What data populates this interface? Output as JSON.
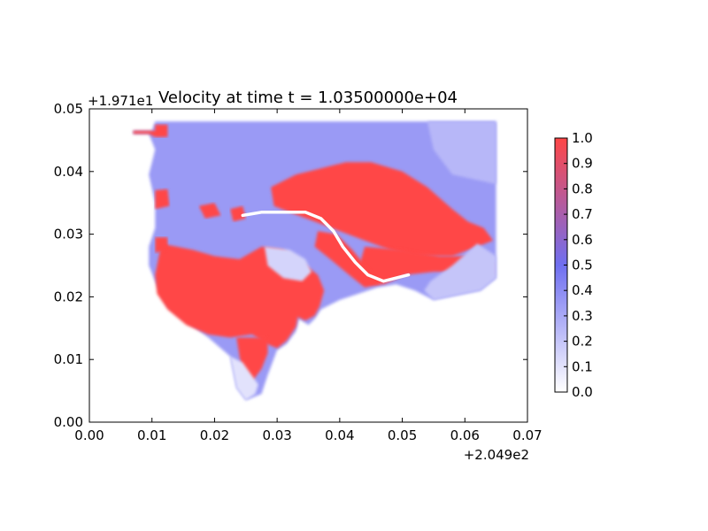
{
  "chart_data": {
    "type": "heatmap",
    "title": "Velocity at time t = 1.03500000e+04",
    "xlim": [
      0.0,
      0.07
    ],
    "ylim": [
      0.0,
      0.05
    ],
    "x_ticks": [
      "0.00",
      "0.01",
      "0.02",
      "0.03",
      "0.04",
      "0.05",
      "0.06",
      "0.07"
    ],
    "y_ticks": [
      "0.00",
      "0.01",
      "0.02",
      "0.03",
      "0.04",
      "0.05"
    ],
    "x_offset": "+2.049e2",
    "y_offset": "+1.971e1",
    "colorbar": {
      "range": [
        0.0,
        1.0
      ],
      "ticks": [
        "0.0",
        "0.1",
        "0.2",
        "0.3",
        "0.4",
        "0.5",
        "0.6",
        "0.7",
        "0.8",
        "0.9",
        "1.0"
      ],
      "colors": [
        "#ffffff",
        "#6f6ff0",
        "#ff4646"
      ]
    },
    "grid": false,
    "regions": [
      {
        "name": "land-mass",
        "level": 0.35,
        "points": [
          [
            0.007,
            0.0465
          ],
          [
            0.01,
            0.0465
          ],
          [
            0.0105,
            0.048
          ],
          [
            0.065,
            0.048
          ],
          [
            0.065,
            0.023
          ],
          [
            0.0625,
            0.021
          ],
          [
            0.055,
            0.0195
          ],
          [
            0.052,
            0.021
          ],
          [
            0.049,
            0.022
          ],
          [
            0.046,
            0.0215
          ],
          [
            0.043,
            0.0205
          ],
          [
            0.04,
            0.0195
          ],
          [
            0.037,
            0.018
          ],
          [
            0.036,
            0.0165
          ],
          [
            0.035,
            0.0155
          ],
          [
            0.0335,
            0.0165
          ],
          [
            0.033,
            0.0145
          ],
          [
            0.0315,
            0.0125
          ],
          [
            0.03,
            0.0115
          ],
          [
            0.0285,
            0.0075
          ],
          [
            0.0275,
            0.0045
          ],
          [
            0.025,
            0.0035
          ],
          [
            0.0235,
            0.0055
          ],
          [
            0.0225,
            0.0105
          ],
          [
            0.019,
            0.0135
          ],
          [
            0.015,
            0.0165
          ],
          [
            0.0125,
            0.0185
          ],
          [
            0.0115,
            0.0205
          ],
          [
            0.0105,
            0.0225
          ],
          [
            0.0095,
            0.025
          ],
          [
            0.0095,
            0.028
          ],
          [
            0.0105,
            0.031
          ],
          [
            0.0105,
            0.035
          ],
          [
            0.0095,
            0.0395
          ],
          [
            0.0105,
            0.0435
          ],
          [
            0.0095,
            0.046
          ],
          [
            0.007,
            0.046
          ]
        ]
      },
      {
        "name": "north-high-band",
        "level": 1.0,
        "points": [
          [
            0.029,
            0.0375
          ],
          [
            0.033,
            0.0395
          ],
          [
            0.037,
            0.0405
          ],
          [
            0.041,
            0.0415
          ],
          [
            0.045,
            0.0415
          ],
          [
            0.05,
            0.04
          ],
          [
            0.054,
            0.0375
          ],
          [
            0.058,
            0.034
          ],
          [
            0.0605,
            0.032
          ],
          [
            0.063,
            0.031
          ],
          [
            0.0645,
            0.029
          ],
          [
            0.062,
            0.028
          ],
          [
            0.058,
            0.0265
          ],
          [
            0.052,
            0.0265
          ],
          [
            0.048,
            0.0275
          ],
          [
            0.044,
            0.029
          ],
          [
            0.04,
            0.0305
          ],
          [
            0.036,
            0.032
          ],
          [
            0.032,
            0.0335
          ],
          [
            0.0295,
            0.0345
          ]
        ]
      },
      {
        "name": "east-high-band",
        "level": 1.0,
        "points": [
          [
            0.044,
            0.028
          ],
          [
            0.05,
            0.0275
          ],
          [
            0.056,
            0.0265
          ],
          [
            0.0605,
            0.0265
          ],
          [
            0.0645,
            0.0255
          ],
          [
            0.0645,
            0.0235
          ],
          [
            0.06,
            0.024
          ],
          [
            0.055,
            0.024
          ],
          [
            0.0505,
            0.0235
          ],
          [
            0.047,
            0.022
          ],
          [
            0.0445,
            0.022
          ],
          [
            0.043,
            0.0245
          ]
        ]
      },
      {
        "name": "bay-high-region",
        "level": 1.0,
        "points": [
          [
            0.0115,
            0.0285
          ],
          [
            0.0165,
            0.0275
          ],
          [
            0.02,
            0.0265
          ],
          [
            0.024,
            0.026
          ],
          [
            0.0275,
            0.028
          ],
          [
            0.031,
            0.0275
          ],
          [
            0.034,
            0.0255
          ],
          [
            0.0365,
            0.0235
          ],
          [
            0.0375,
            0.021
          ],
          [
            0.0368,
            0.0185
          ],
          [
            0.036,
            0.017
          ],
          [
            0.0345,
            0.0162
          ],
          [
            0.0333,
            0.0168
          ],
          [
            0.033,
            0.0152
          ],
          [
            0.0315,
            0.013
          ],
          [
            0.03,
            0.0118
          ],
          [
            0.0283,
            0.0125
          ],
          [
            0.026,
            0.014
          ],
          [
            0.0225,
            0.0135
          ],
          [
            0.019,
            0.014
          ],
          [
            0.0155,
            0.0155
          ],
          [
            0.0125,
            0.018
          ],
          [
            0.0108,
            0.0205
          ],
          [
            0.0105,
            0.0235
          ]
        ]
      },
      {
        "name": "south-high-tongue",
        "level": 1.0,
        "points": [
          [
            0.0235,
            0.0135
          ],
          [
            0.0285,
            0.0135
          ],
          [
            0.0285,
            0.011
          ],
          [
            0.0275,
            0.0085
          ],
          [
            0.026,
            0.0065
          ],
          [
            0.0245,
            0.008
          ],
          [
            0.024,
            0.0105
          ]
        ]
      },
      {
        "name": "channel-high",
        "level": 1.0,
        "points": [
          [
            0.0365,
            0.0305
          ],
          [
            0.0395,
            0.03
          ],
          [
            0.042,
            0.0275
          ],
          [
            0.0445,
            0.0245
          ],
          [
            0.0465,
            0.022
          ],
          [
            0.044,
            0.0215
          ],
          [
            0.0415,
            0.0235
          ],
          [
            0.0385,
            0.026
          ],
          [
            0.036,
            0.028
          ]
        ]
      },
      {
        "name": "west-high-1",
        "level": 1.0,
        "points": [
          [
            0.0105,
            0.037
          ],
          [
            0.0125,
            0.0372
          ],
          [
            0.0128,
            0.0345
          ],
          [
            0.0105,
            0.034
          ]
        ]
      },
      {
        "name": "west-high-2",
        "level": 1.0,
        "points": [
          [
            0.0175,
            0.0345
          ],
          [
            0.02,
            0.035
          ],
          [
            0.021,
            0.033
          ],
          [
            0.0185,
            0.0325
          ]
        ]
      },
      {
        "name": "west-high-3",
        "level": 1.0,
        "points": [
          [
            0.0225,
            0.034
          ],
          [
            0.0245,
            0.0345
          ],
          [
            0.025,
            0.0325
          ],
          [
            0.023,
            0.032
          ]
        ]
      },
      {
        "name": "west-high-4",
        "level": 1.0,
        "points": [
          [
            0.0105,
            0.0295
          ],
          [
            0.0125,
            0.0295
          ],
          [
            0.0125,
            0.0275
          ],
          [
            0.0105,
            0.027
          ]
        ]
      },
      {
        "name": "north-west-high",
        "level": 1.0,
        "points": [
          [
            0.007,
            0.0465
          ],
          [
            0.0105,
            0.0465
          ],
          [
            0.0105,
            0.0475
          ],
          [
            0.0125,
            0.0475
          ],
          [
            0.0125,
            0.0455
          ],
          [
            0.0105,
            0.0455
          ],
          [
            0.0095,
            0.046
          ],
          [
            0.007,
            0.046
          ]
        ]
      },
      {
        "name": "east-low-patch",
        "level": 0.2,
        "points": [
          [
            0.055,
            0.0195
          ],
          [
            0.0625,
            0.021
          ],
          [
            0.065,
            0.023
          ],
          [
            0.065,
            0.0265
          ],
          [
            0.062,
            0.0285
          ],
          [
            0.058,
            0.025
          ],
          [
            0.0545,
            0.0225
          ],
          [
            0.0535,
            0.021
          ]
        ]
      },
      {
        "name": "north-east-light",
        "level": 0.25,
        "points": [
          [
            0.054,
            0.048
          ],
          [
            0.065,
            0.048
          ],
          [
            0.065,
            0.038
          ],
          [
            0.058,
            0.0395
          ],
          [
            0.055,
            0.0435
          ]
        ]
      },
      {
        "name": "interior-light",
        "level": 0.15,
        "points": [
          [
            0.028,
            0.028
          ],
          [
            0.032,
            0.0275
          ],
          [
            0.0345,
            0.026
          ],
          [
            0.0355,
            0.024
          ],
          [
            0.034,
            0.0225
          ],
          [
            0.031,
            0.023
          ],
          [
            0.0285,
            0.025
          ]
        ]
      },
      {
        "name": "south-low",
        "level": 0.1,
        "points": [
          [
            0.0225,
            0.0105
          ],
          [
            0.0245,
            0.0095
          ],
          [
            0.027,
            0.006
          ],
          [
            0.0265,
            0.0045
          ],
          [
            0.025,
            0.0035
          ],
          [
            0.0235,
            0.0055
          ]
        ]
      }
    ],
    "ridge": {
      "name": "white-ridge-line",
      "level": 0.0,
      "points": [
        [
          0.0245,
          0.033
        ],
        [
          0.0275,
          0.0335
        ],
        [
          0.031,
          0.0335
        ],
        [
          0.0345,
          0.0335
        ],
        [
          0.037,
          0.0325
        ],
        [
          0.039,
          0.0305
        ],
        [
          0.0405,
          0.028
        ],
        [
          0.0425,
          0.0255
        ],
        [
          0.0445,
          0.0235
        ],
        [
          0.047,
          0.0225
        ],
        [
          0.051,
          0.0235
        ]
      ]
    }
  }
}
